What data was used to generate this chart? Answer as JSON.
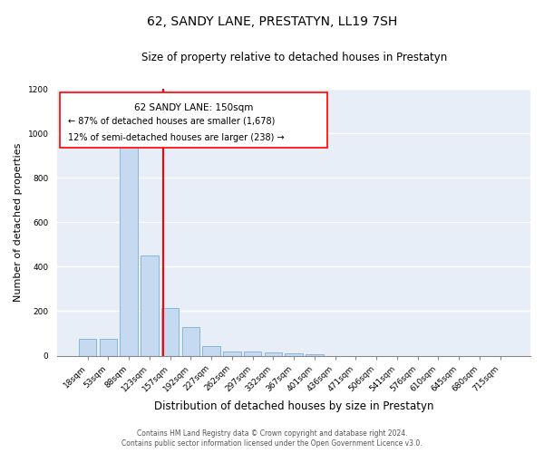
{
  "title": "62, SANDY LANE, PRESTATYN, LL19 7SH",
  "subtitle": "Size of property relative to detached houses in Prestatyn",
  "xlabel": "Distribution of detached houses by size in Prestatyn",
  "ylabel": "Number of detached properties",
  "categories": [
    "18sqm",
    "53sqm",
    "88sqm",
    "123sqm",
    "157sqm",
    "192sqm",
    "227sqm",
    "262sqm",
    "297sqm",
    "332sqm",
    "367sqm",
    "401sqm",
    "436sqm",
    "471sqm",
    "506sqm",
    "541sqm",
    "576sqm",
    "610sqm",
    "645sqm",
    "680sqm",
    "715sqm"
  ],
  "values": [
    75,
    75,
    975,
    450,
    215,
    130,
    45,
    20,
    20,
    15,
    10,
    5,
    0,
    0,
    0,
    0,
    0,
    0,
    0,
    0,
    0
  ],
  "bar_color": "#c5d9f0",
  "bar_edgecolor": "#7bafd4",
  "redline_label": "62 SANDY LANE: 150sqm",
  "annotation_line1": "← 87% of detached houses are smaller (1,678)",
  "annotation_line2": "12% of semi-detached houses are larger (238) →",
  "ylim": [
    0,
    1200
  ],
  "yticks": [
    0,
    200,
    400,
    600,
    800,
    1000,
    1200
  ],
  "background_color": "#ffffff",
  "plot_bg_color": "#e8eef7",
  "grid_color": "#ffffff",
  "title_fontsize": 10,
  "subtitle_fontsize": 8.5,
  "xlabel_fontsize": 8.5,
  "ylabel_fontsize": 8,
  "tick_fontsize": 6.5,
  "footer_line1": "Contains HM Land Registry data © Crown copyright and database right 2024.",
  "footer_line2": "Contains public sector information licensed under the Open Government Licence v3.0."
}
